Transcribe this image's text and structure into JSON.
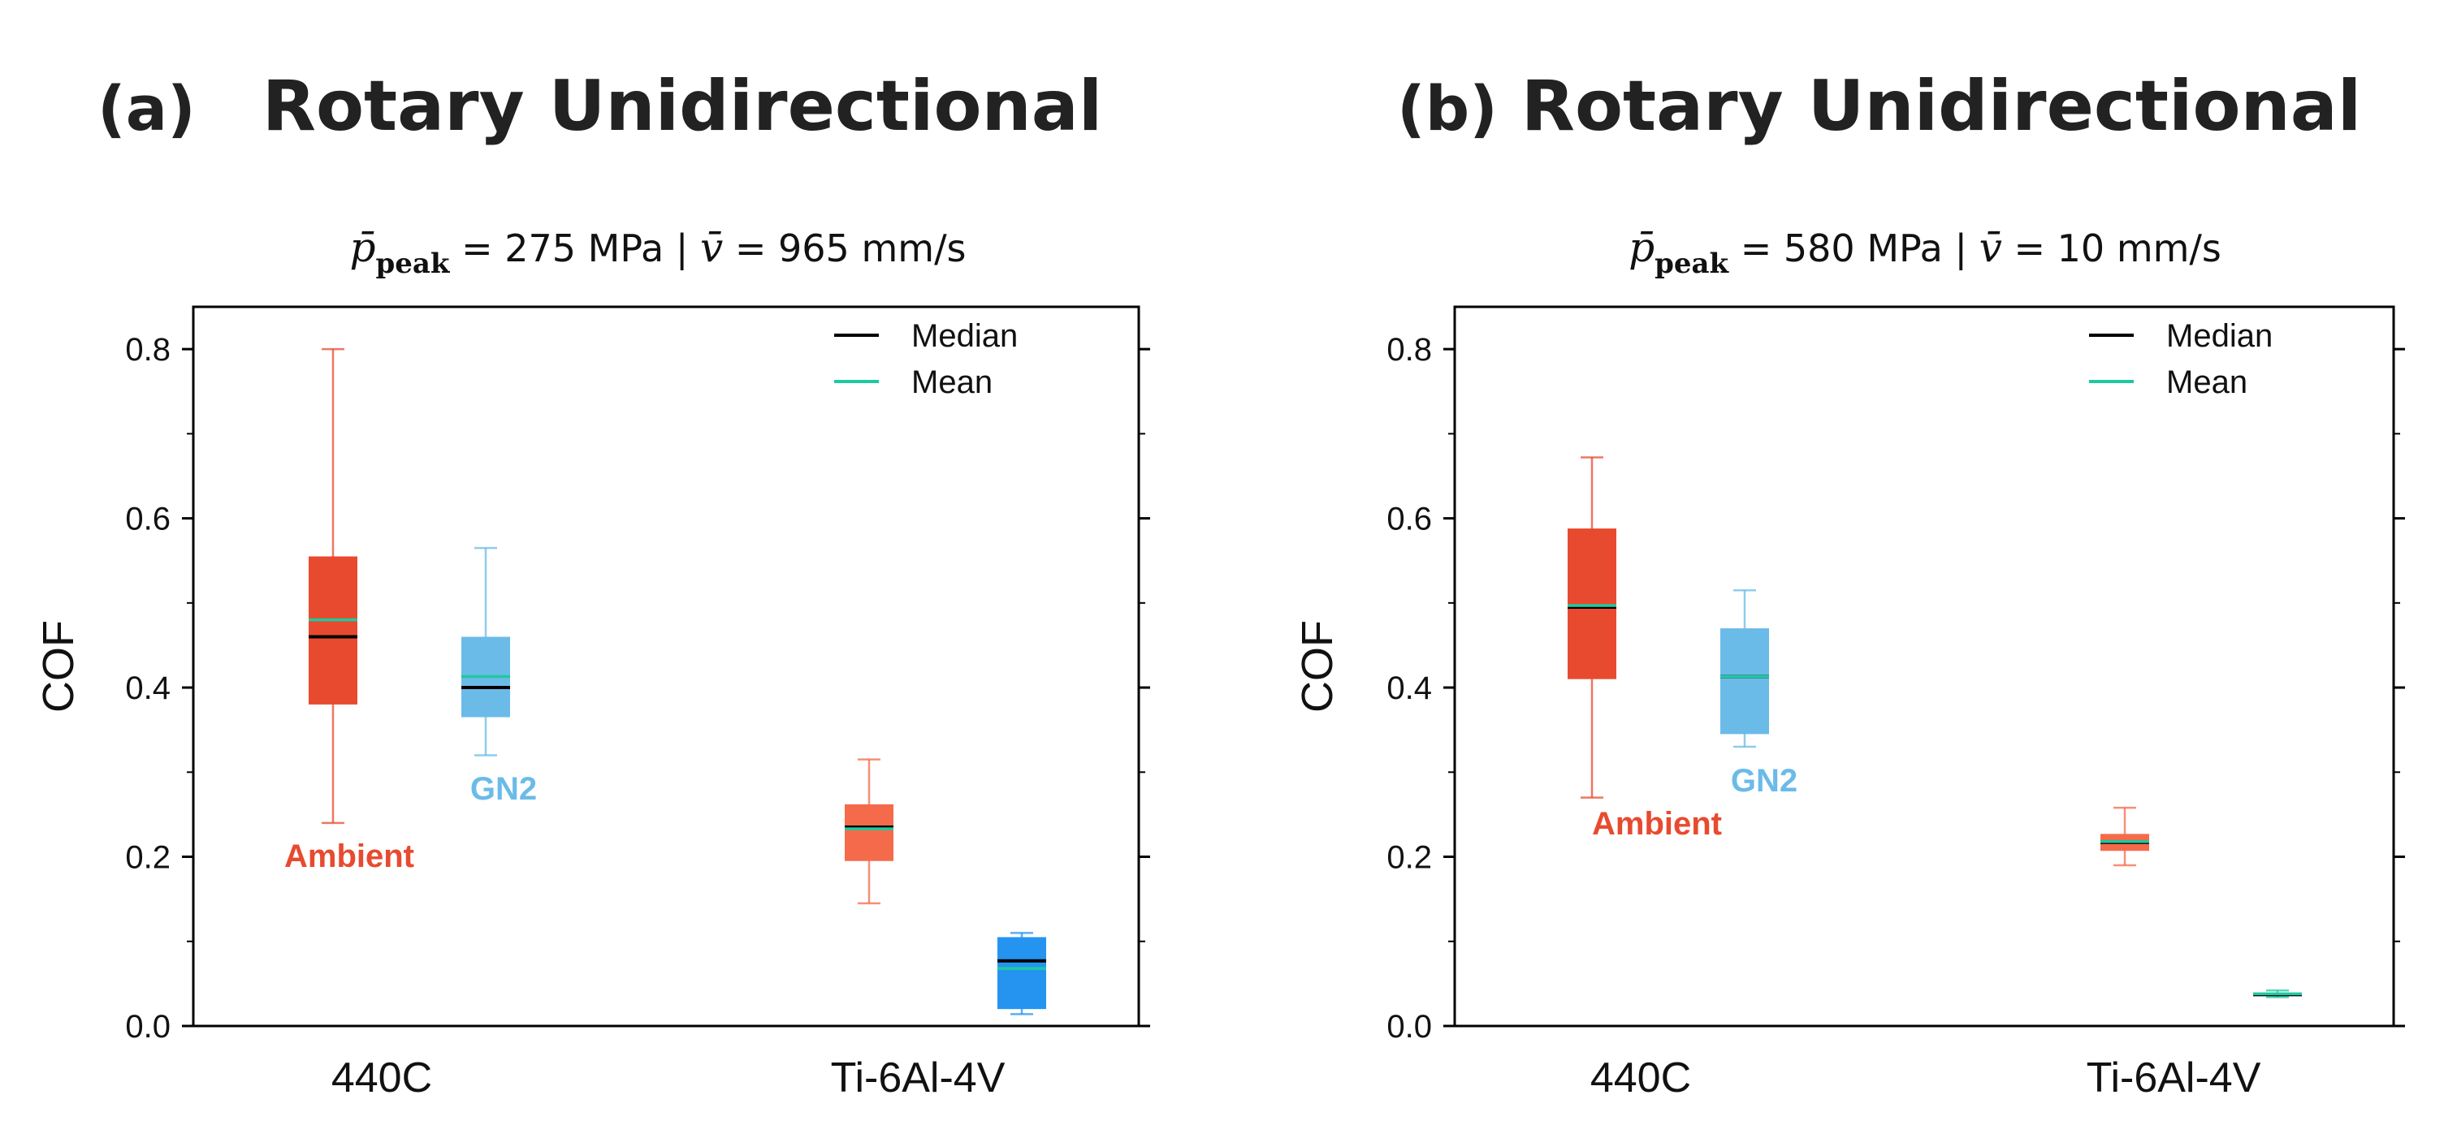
{
  "colors": {
    "ambient": "#e84a2f",
    "ambient_light": "#f56a4b",
    "gn2": "#6bbbe8",
    "gn2_dark": "#2594f0",
    "median": "#000000",
    "mean": "#1fc9a0",
    "axis": "#000000"
  },
  "chart_data": [
    {
      "type": "box",
      "panel_label": "(a)",
      "title": "Rotary Unidirectional",
      "conditions": {
        "p_symbol": "p̄",
        "p_sub": "peak",
        "p_value": "= 275 MPa",
        "separator": "|",
        "v_symbol": "v̄",
        "v_value": "= 965 mm/s"
      },
      "xlabel": "",
      "ylabel": "COF",
      "ylim": [
        0,
        0.85
      ],
      "yticks": [
        "0.0",
        "0.2",
        "0.4",
        "0.6",
        "0.8"
      ],
      "categories": [
        "440C",
        "Ti-6Al-4V"
      ],
      "legend": {
        "median_label": "Median",
        "mean_label": "Mean",
        "position": "top-right"
      },
      "annotations": {
        "ambient": "Ambient",
        "gn2": "GN2"
      },
      "series": [
        {
          "name": "Ambient",
          "boxes": [
            {
              "category": "440C",
              "whisker_low": 0.24,
              "q1": 0.38,
              "median": 0.46,
              "mean": 0.48,
              "q3": 0.555,
              "whisker_high": 0.8
            },
            {
              "category": "Ti-6Al-4V",
              "whisker_low": 0.145,
              "q1": 0.195,
              "median": 0.235,
              "mean": 0.233,
              "q3": 0.262,
              "whisker_high": 0.315
            }
          ]
        },
        {
          "name": "GN2",
          "boxes": [
            {
              "category": "440C",
              "whisker_low": 0.32,
              "q1": 0.365,
              "median": 0.4,
              "mean": 0.413,
              "q3": 0.46,
              "whisker_high": 0.565
            },
            {
              "category": "Ti-6Al-4V",
              "whisker_low": 0.014,
              "q1": 0.02,
              "median": 0.077,
              "mean": 0.068,
              "q3": 0.105,
              "whisker_high": 0.11
            }
          ]
        }
      ]
    },
    {
      "type": "box",
      "panel_label": "(b)",
      "title": "Rotary Unidirectional",
      "conditions": {
        "p_symbol": "p̄",
        "p_sub": "peak",
        "p_value": "= 580 MPa",
        "separator": "|",
        "v_symbol": "v̄",
        "v_value": "= 10 mm/s"
      },
      "xlabel": "",
      "ylabel": "COF",
      "ylim": [
        0,
        0.85
      ],
      "yticks": [
        "0.0",
        "0.2",
        "0.4",
        "0.6",
        "0.8"
      ],
      "categories": [
        "440C",
        "Ti-6Al-4V"
      ],
      "legend": {
        "median_label": "Median",
        "mean_label": "Mean",
        "position": "top-right"
      },
      "annotations": {
        "ambient": "Ambient",
        "gn2": "GN2"
      },
      "series": [
        {
          "name": "Ambient",
          "boxes": [
            {
              "category": "440C",
              "whisker_low": 0.27,
              "q1": 0.41,
              "median": 0.495,
              "mean": 0.497,
              "q3": 0.588,
              "whisker_high": 0.672
            },
            {
              "category": "Ti-6Al-4V",
              "whisker_low": 0.19,
              "q1": 0.207,
              "median": 0.217,
              "mean": 0.218,
              "q3": 0.227,
              "whisker_high": 0.258
            }
          ]
        },
        {
          "name": "GN2",
          "boxes": [
            {
              "category": "440C",
              "whisker_low": 0.33,
              "q1": 0.345,
              "median": 0.413,
              "mean": 0.413,
              "q3": 0.47,
              "whisker_high": 0.515
            },
            {
              "category": "Ti-6Al-4V",
              "whisker_low": 0.034,
              "q1": 0.036,
              "median": 0.037,
              "mean": 0.038,
              "q3": 0.039,
              "whisker_high": 0.042
            }
          ]
        }
      ]
    }
  ]
}
